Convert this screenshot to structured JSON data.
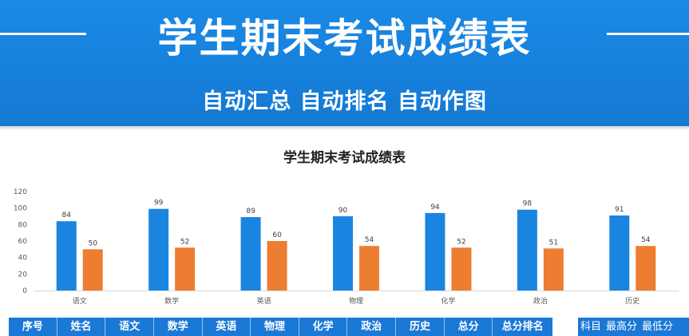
{
  "banner": {
    "title": "学生期末考试成绩表",
    "subtitle": "自动汇总 自动排名 自动作图"
  },
  "chart_data": {
    "type": "bar",
    "title": "学生期末考试成绩表",
    "categories": [
      "语文",
      "数学",
      "英语",
      "物理",
      "化学",
      "政治",
      "历史"
    ],
    "series": [
      {
        "values": [
          84,
          99,
          89,
          90,
          94,
          98,
          91
        ],
        "color": "#1a85e0"
      },
      {
        "values": [
          50,
          52,
          60,
          54,
          52,
          51,
          54
        ],
        "color": "#ed7d31"
      }
    ],
    "ylim": [
      0,
      120
    ],
    "yticks": [
      0,
      20,
      40,
      60,
      80,
      100,
      120
    ],
    "grid": false,
    "data_labels": true
  },
  "table": {
    "headers": [
      "序号",
      "姓名",
      "语文",
      "数学",
      "英语",
      "物理",
      "化学",
      "政治",
      "历史",
      "总分",
      "总分排名"
    ]
  },
  "summary_table": {
    "headers": [
      "科目",
      "最高分",
      "最低分"
    ]
  }
}
